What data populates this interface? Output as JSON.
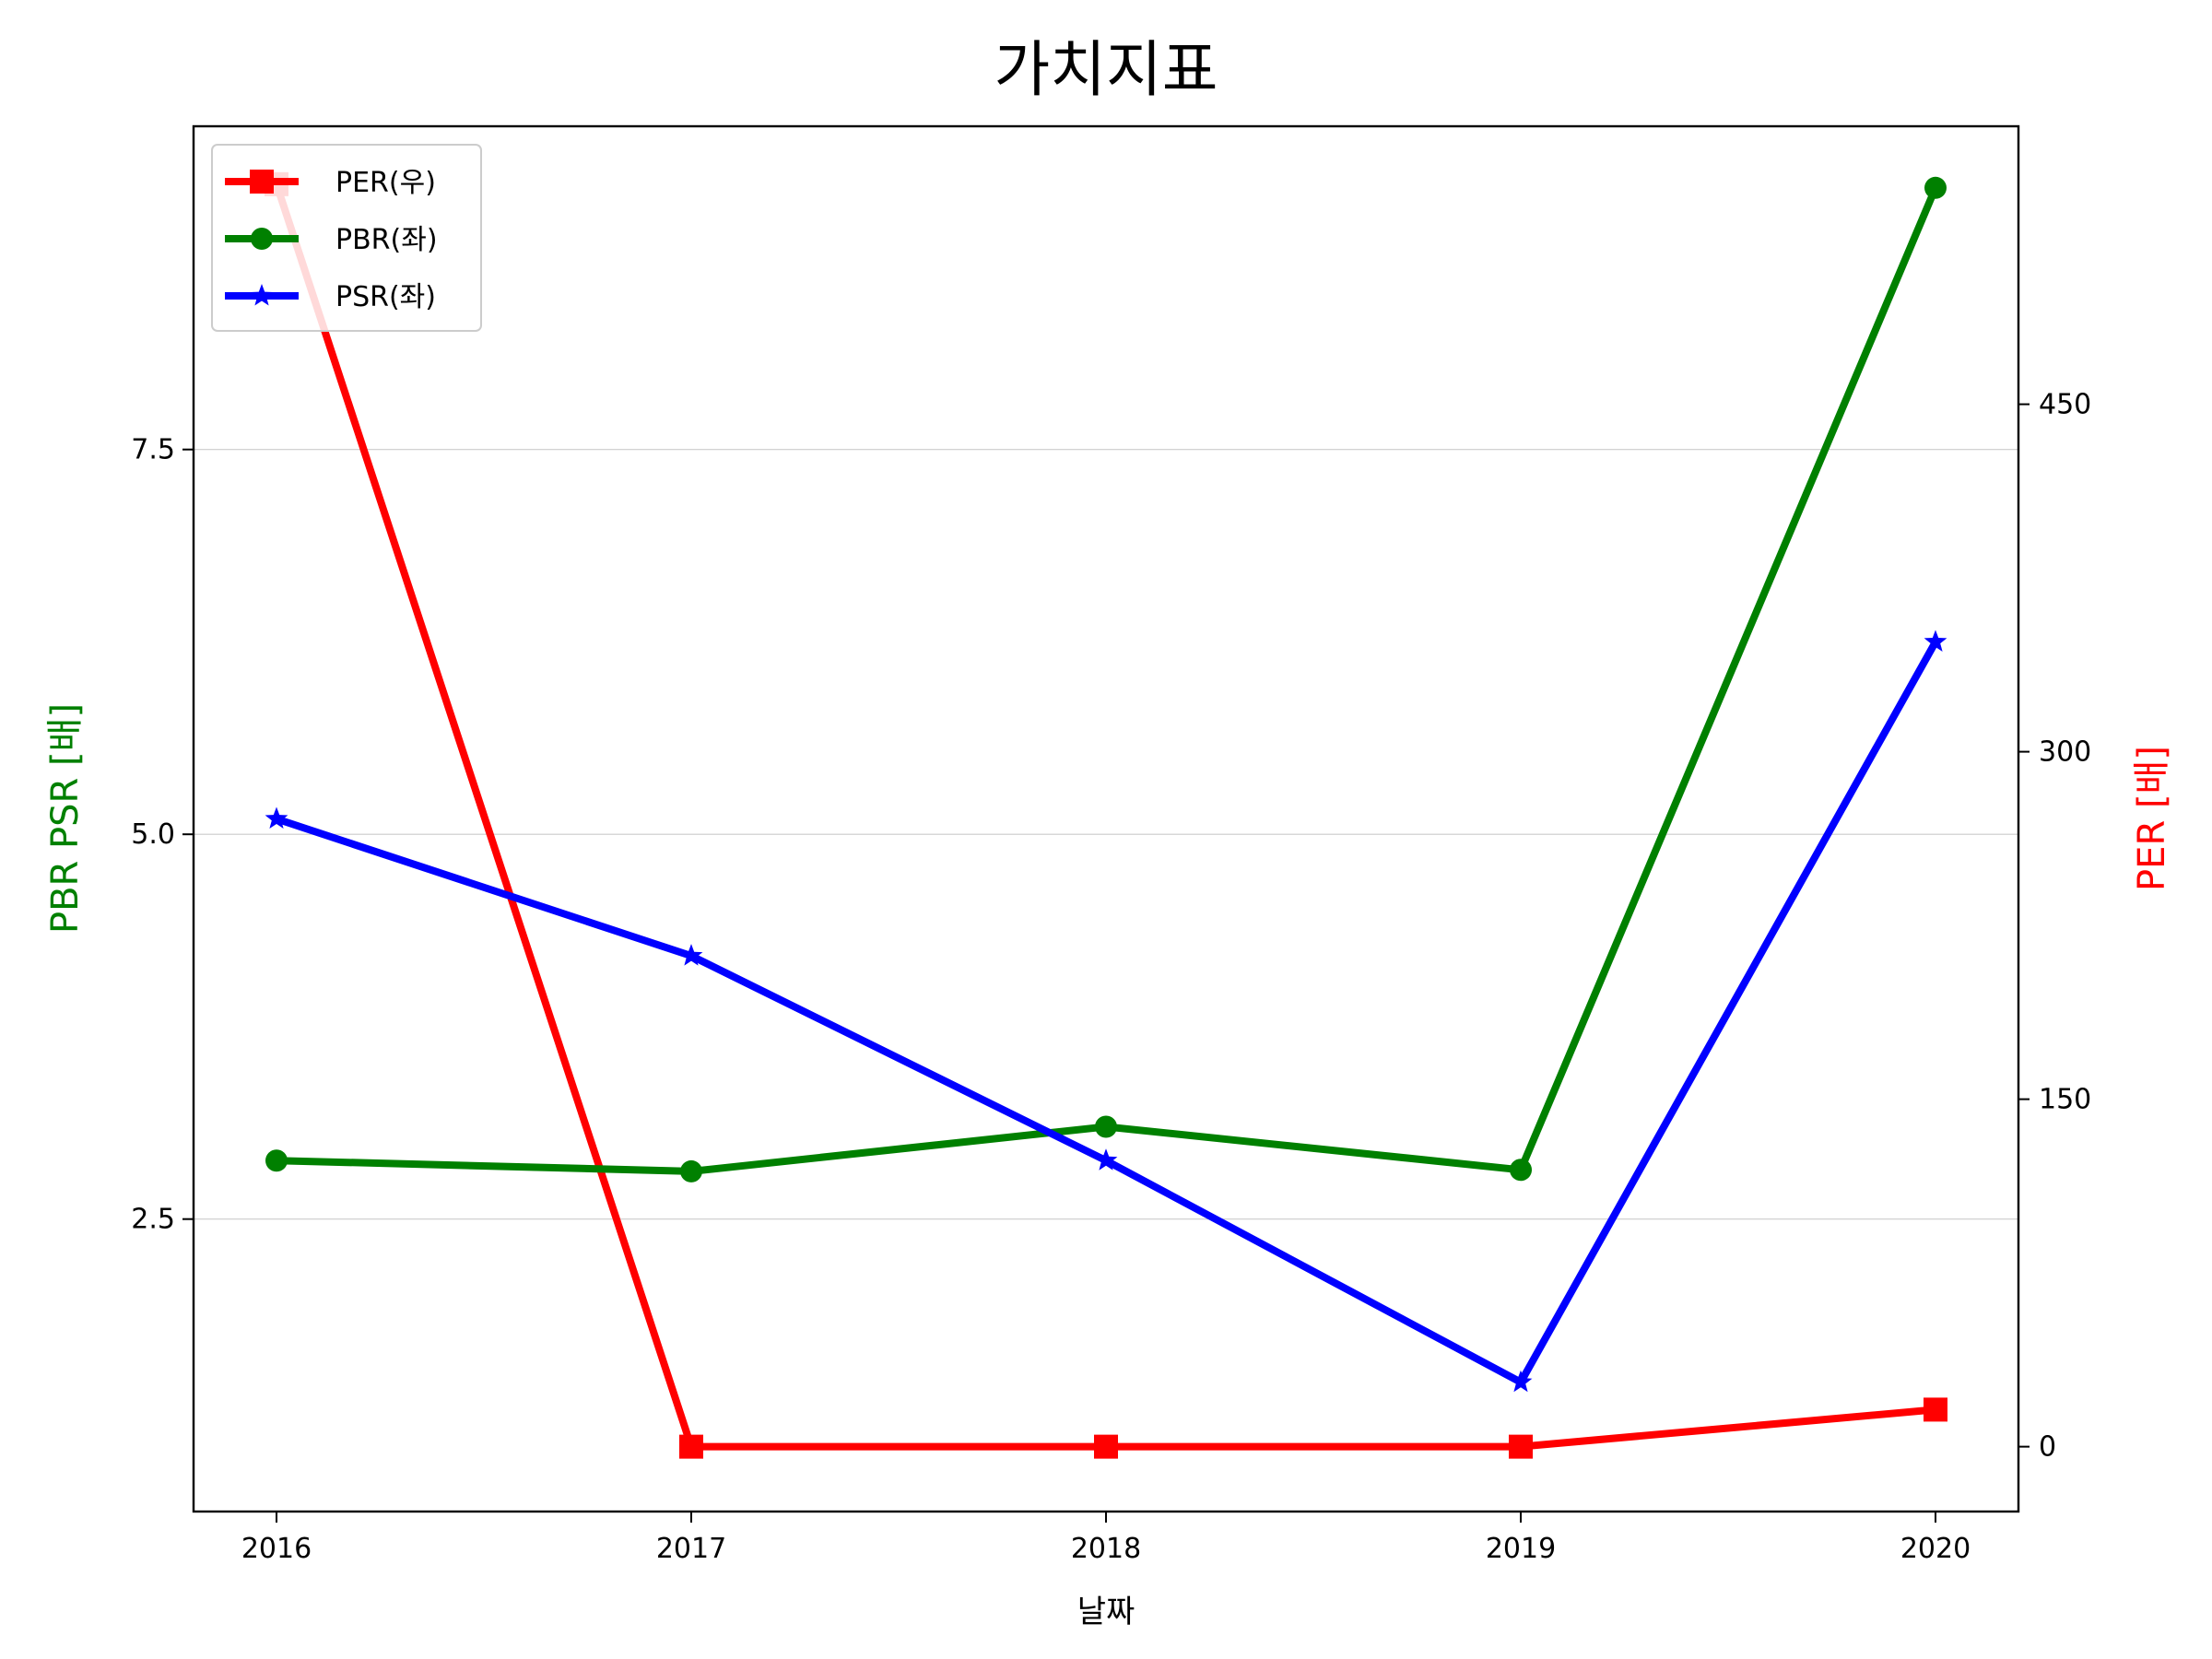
{
  "chart_data": {
    "type": "line",
    "title": "가치지표",
    "xlabel": "날짜",
    "ylabel_left": "PBR PSR [배]",
    "ylabel_right": "PER [배]",
    "ylabel_left_color": "#008000",
    "ylabel_right_color": "#ff0000",
    "categories": [
      "2016",
      "2017",
      "2018",
      "2019",
      "2020"
    ],
    "left_axis": {
      "ylim": [
        0.6,
        9.6
      ],
      "ticks": [
        2.5,
        5.0,
        7.5
      ],
      "tick_labels": [
        "2.5",
        "5.0",
        "7.5"
      ]
    },
    "right_axis": {
      "ylim": [
        -28,
        570
      ],
      "ticks": [
        0,
        150,
        300,
        450
      ],
      "tick_labels": [
        "0",
        "150",
        "300",
        "450"
      ]
    },
    "grid": "horizontal",
    "legend_position": "upper-left",
    "series": [
      {
        "name": "PER(우)",
        "axis": "right",
        "color": "#ff0000",
        "marker": "square",
        "values": [
          545,
          0,
          0,
          0,
          16
        ]
      },
      {
        "name": "PBR(좌)",
        "axis": "left",
        "color": "#008000",
        "marker": "circle",
        "values": [
          2.88,
          2.81,
          3.1,
          2.82,
          9.2
        ]
      },
      {
        "name": "PSR(좌)",
        "axis": "left",
        "color": "#0000ff",
        "marker": "star",
        "values": [
          5.1,
          4.21,
          2.88,
          1.44,
          6.25
        ]
      }
    ]
  }
}
